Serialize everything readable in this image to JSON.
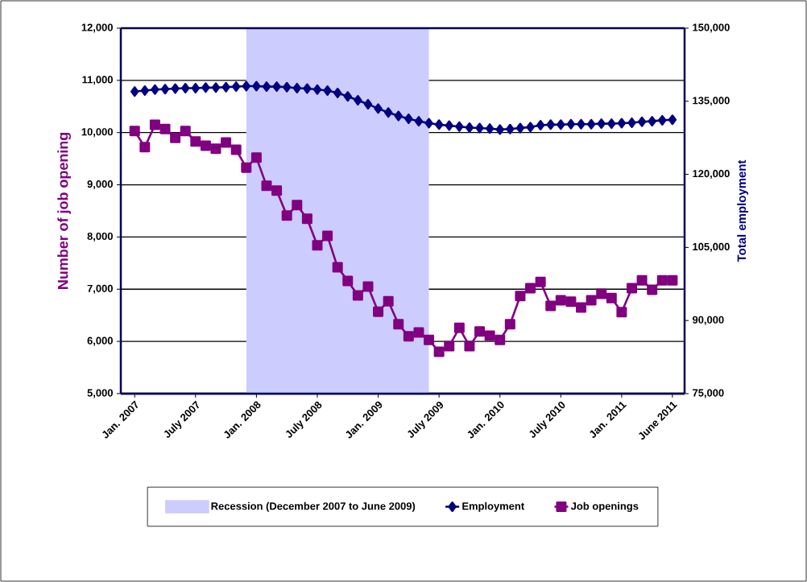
{
  "chart_data": {
    "type": "line",
    "ylabel": "Number of job opening",
    "y2label": "Total employment",
    "x": [
      "2007-01",
      "2007-02",
      "2007-03",
      "2007-04",
      "2007-05",
      "2007-06",
      "2007-07",
      "2007-08",
      "2007-09",
      "2007-10",
      "2007-11",
      "2007-12",
      "2008-01",
      "2008-02",
      "2008-03",
      "2008-04",
      "2008-05",
      "2008-06",
      "2008-07",
      "2008-08",
      "2008-09",
      "2008-10",
      "2008-11",
      "2008-12",
      "2009-01",
      "2009-02",
      "2009-03",
      "2009-04",
      "2009-05",
      "2009-06",
      "2009-07",
      "2009-08",
      "2009-09",
      "2009-10",
      "2009-11",
      "2009-12",
      "2010-01",
      "2010-02",
      "2010-03",
      "2010-04",
      "2010-05",
      "2010-06",
      "2010-07",
      "2010-08",
      "2010-09",
      "2010-10",
      "2010-11",
      "2010-12",
      "2011-01",
      "2011-02",
      "2011-03",
      "2011-04",
      "2011-05",
      "2011-06"
    ],
    "series": [
      {
        "name": "Employment",
        "color": "#000080",
        "axis": "y2",
        "marker": "diamond",
        "values": [
          137000,
          137200,
          137400,
          137500,
          137600,
          137700,
          137700,
          137800,
          137800,
          137900,
          138000,
          138100,
          138100,
          138000,
          138000,
          137900,
          137700,
          137600,
          137400,
          137200,
          136700,
          136000,
          135200,
          134400,
          133500,
          132700,
          132000,
          131400,
          130900,
          130500,
          130200,
          130000,
          129800,
          129600,
          129500,
          129400,
          129200,
          129300,
          129500,
          129700,
          130100,
          130200,
          130200,
          130300,
          130300,
          130300,
          130400,
          130400,
          130500,
          130600,
          130800,
          130900,
          131100,
          131200
        ]
      },
      {
        "name": "Job openings",
        "color": "#800080",
        "axis": "y",
        "marker": "square",
        "values": [
          10030,
          9720,
          10150,
          10070,
          9900,
          10030,
          9830,
          9750,
          9690,
          9810,
          9670,
          9330,
          9520,
          8980,
          8890,
          8410,
          8610,
          8350,
          7840,
          8020,
          7420,
          7160,
          6880,
          7050,
          6570,
          6770,
          6330,
          6100,
          6170,
          6030,
          5800,
          5910,
          6260,
          5910,
          6190,
          6110,
          6030,
          6330,
          6870,
          7020,
          7140,
          6680,
          6790,
          6760,
          6650,
          6790,
          6910,
          6830,
          6560,
          7020,
          7170,
          6990,
          7170,
          7170
        ]
      }
    ],
    "xlim": [
      "2006-11-20",
      "2011-07-07"
    ],
    "ylim": [
      5000,
      12000
    ],
    "yticks": [
      {
        "value": 5000,
        "label": "5,000"
      },
      {
        "value": 6000,
        "label": "6,000"
      },
      {
        "value": 7000,
        "label": "7,000"
      },
      {
        "value": 8000,
        "label": "8,000"
      },
      {
        "value": 9000,
        "label": "9,000"
      },
      {
        "value": 10000,
        "label": "10,000"
      },
      {
        "value": 11000,
        "label": "11,000"
      },
      {
        "value": 12000,
        "label": "12,000"
      }
    ],
    "y2lim": [
      75000,
      150000
    ],
    "y2ticks": [
      {
        "value": 75000,
        "label": "75,000"
      },
      {
        "value": 90000,
        "label": "90,000"
      },
      {
        "value": 105000,
        "label": "105,000"
      },
      {
        "value": 120000,
        "label": "120,000"
      },
      {
        "value": 135000,
        "label": "135,000"
      },
      {
        "value": 150000,
        "label": "150,000"
      }
    ],
    "xticks": [
      {
        "value": "2007-01",
        "label": "Jan. 2007"
      },
      {
        "value": "2007-07",
        "label": "July 2007"
      },
      {
        "value": "2008-01",
        "label": "Jan. 2008"
      },
      {
        "value": "2008-07",
        "label": "July 2008"
      },
      {
        "value": "2009-01",
        "label": "Jan. 2009"
      },
      {
        "value": "2009-07",
        "label": "July 2009"
      },
      {
        "value": "2010-01",
        "label": "Jan. 2010"
      },
      {
        "value": "2010-07",
        "label": "July 2010"
      },
      {
        "value": "2011-01",
        "label": "Jan. 2011"
      },
      {
        "value": "2011-06",
        "label": "June 2011"
      }
    ],
    "bands": [
      {
        "axis": "x",
        "from": "2007-12",
        "to": "2009-06",
        "label": "Recession (December 2007 to June 2009)",
        "color": "#ccccff"
      }
    ],
    "grid": "y",
    "legend": "bottom",
    "line_style": "solid"
  }
}
